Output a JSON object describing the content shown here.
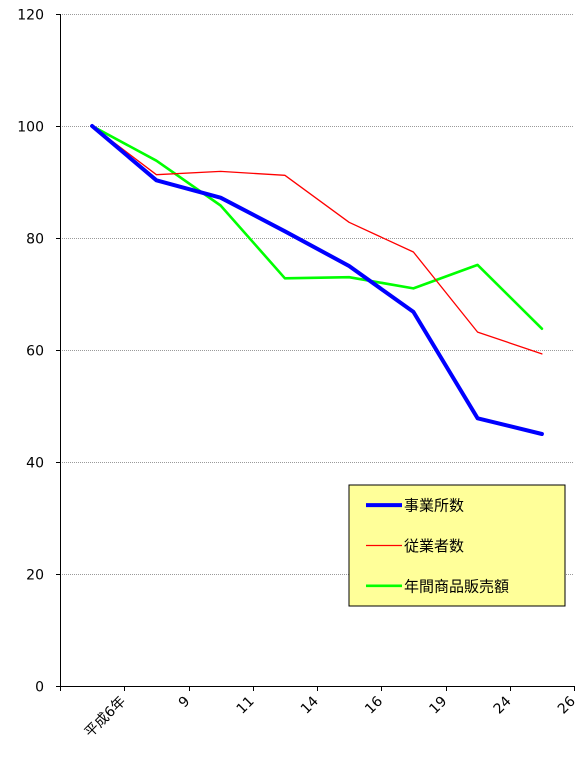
{
  "chart_data": {
    "type": "line",
    "categories": [
      "平成6年",
      "9",
      "11",
      "14",
      "16",
      "19",
      "24",
      "26"
    ],
    "ylim": [
      0,
      120
    ],
    "yticks": [
      0,
      20,
      40,
      60,
      80,
      100,
      120
    ],
    "grid": true,
    "legend_position": "bottom-right",
    "series": [
      {
        "name": "事業所数",
        "color": "#0000ff",
        "width": 4,
        "values": [
          100,
          90.3,
          87.2,
          81.2,
          75.0,
          66.8,
          47.8,
          45.0
        ]
      },
      {
        "name": "従業者数",
        "color": "#ff0000",
        "width": 1.3,
        "values": [
          100,
          91.3,
          91.9,
          91.2,
          82.8,
          77.5,
          63.2,
          59.3
        ]
      },
      {
        "name": "年間商品販売額",
        "color": "#00ff00",
        "width": 2.6,
        "values": [
          100,
          93.8,
          85.8,
          72.8,
          73.0,
          71.0,
          75.2,
          63.8
        ]
      }
    ]
  },
  "legend": {
    "background": "#ffff99"
  }
}
